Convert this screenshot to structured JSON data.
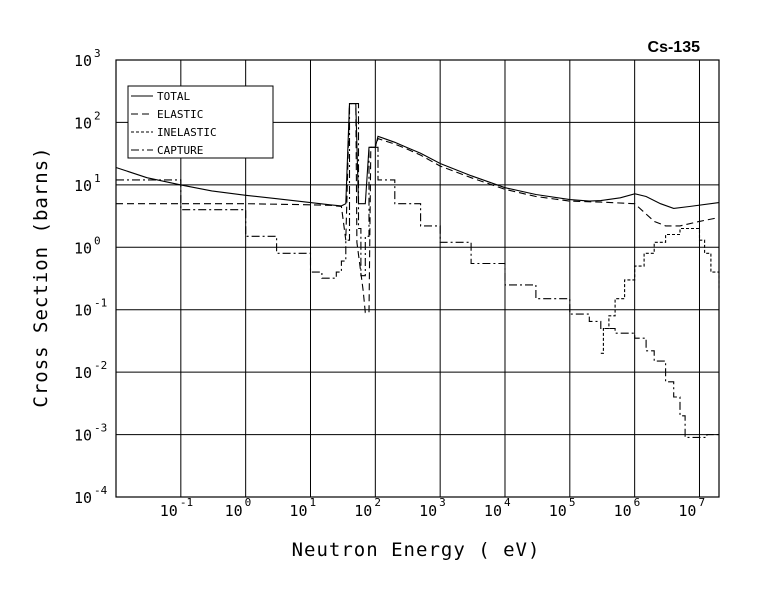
{
  "chart_data": {
    "type": "line",
    "title": "Cs-135",
    "xlabel": "Neutron Energy ( eV)",
    "ylabel": "Cross Section (barns)",
    "x_scale": "log",
    "y_scale": "log",
    "xlim": [
      0.01,
      20000000
    ],
    "ylim": [
      0.0001,
      1000
    ],
    "grid": true,
    "legend_position": "top-left",
    "x_ticks": [
      {
        "base": "10",
        "exp": "-1",
        "value": 0.1
      },
      {
        "base": "10",
        "exp": "0",
        "value": 1
      },
      {
        "base": "10",
        "exp": "1",
        "value": 10
      },
      {
        "base": "10",
        "exp": "2",
        "value": 100
      },
      {
        "base": "10",
        "exp": "3",
        "value": 1000
      },
      {
        "base": "10",
        "exp": "4",
        "value": 10000
      },
      {
        "base": "10",
        "exp": "5",
        "value": 100000
      },
      {
        "base": "10",
        "exp": "6",
        "value": 1000000
      },
      {
        "base": "10",
        "exp": "7",
        "value": 10000000
      }
    ],
    "y_ticks": [
      {
        "base": "10",
        "exp": "3",
        "value": 1000
      },
      {
        "base": "10",
        "exp": "2",
        "value": 100
      },
      {
        "base": "10",
        "exp": "1",
        "value": 10
      },
      {
        "base": "10",
        "exp": "0",
        "value": 1
      },
      {
        "base": "10",
        "exp": "-1",
        "value": 0.1
      },
      {
        "base": "10",
        "exp": "-2",
        "value": 0.01
      },
      {
        "base": "10",
        "exp": "-3",
        "value": 0.001
      },
      {
        "base": "10",
        "exp": "-4",
        "value": 0.0001
      }
    ],
    "series": [
      {
        "name": "TOTAL",
        "dash": "solid",
        "color": "#000000",
        "step": false,
        "points": [
          [
            0.01,
            19
          ],
          [
            0.03,
            13
          ],
          [
            0.1,
            10
          ],
          [
            0.3,
            8
          ],
          [
            1,
            6.8
          ],
          [
            3,
            6
          ],
          [
            10,
            5.2
          ],
          [
            20,
            4.8
          ],
          [
            30,
            4.6
          ],
          [
            35,
            5
          ],
          [
            40,
            200
          ],
          [
            50,
            200
          ],
          [
            55,
            5
          ],
          [
            70,
            5
          ],
          [
            80,
            40
          ],
          [
            100,
            40
          ],
          [
            110,
            60
          ],
          [
            200,
            48
          ],
          [
            300,
            40
          ],
          [
            500,
            32
          ],
          [
            1000,
            22
          ],
          [
            3000,
            14
          ],
          [
            10000,
            9
          ],
          [
            30000,
            7
          ],
          [
            100000,
            5.8
          ],
          [
            200000,
            5.5
          ],
          [
            300000,
            5.6
          ],
          [
            600000,
            6.2
          ],
          [
            1000000,
            7.2
          ],
          [
            1500000,
            6.5
          ],
          [
            2500000,
            5
          ],
          [
            4000000,
            4.2
          ],
          [
            7000000,
            4.5
          ],
          [
            20000000,
            5.2
          ]
        ]
      },
      {
        "name": "ELASTIC",
        "dash": "long-dash",
        "color": "#000000",
        "step": false,
        "points": [
          [
            0.01,
            5
          ],
          [
            0.1,
            5
          ],
          [
            1,
            5
          ],
          [
            10,
            4.8
          ],
          [
            20,
            4.7
          ],
          [
            30,
            4.5
          ],
          [
            35,
            1.3
          ],
          [
            40,
            200
          ],
          [
            50,
            200
          ],
          [
            52,
            1.2
          ],
          [
            65,
            0.2
          ],
          [
            70,
            0.09
          ],
          [
            80,
            0.09
          ],
          [
            85,
            40
          ],
          [
            100,
            40
          ],
          [
            110,
            55
          ],
          [
            200,
            45
          ],
          [
            300,
            38
          ],
          [
            500,
            30
          ],
          [
            1000,
            20
          ],
          [
            3000,
            13
          ],
          [
            10000,
            8.5
          ],
          [
            30000,
            6.5
          ],
          [
            100000,
            5.5
          ],
          [
            300000,
            5.3
          ],
          [
            1000000,
            5
          ],
          [
            2000000,
            2.6
          ],
          [
            3000000,
            2.2
          ],
          [
            5000000,
            2.2
          ],
          [
            10000000,
            2.6
          ],
          [
            20000000,
            3
          ]
        ]
      },
      {
        "name": "INELASTIC",
        "dash": "short-dash",
        "color": "#000000",
        "step": true,
        "points": [
          [
            300000,
            0.02
          ],
          [
            330000,
            0.05
          ],
          [
            400000,
            0.08
          ],
          [
            500000,
            0.15
          ],
          [
            700000,
            0.3
          ],
          [
            1000000,
            0.5
          ],
          [
            1400000,
            0.8
          ],
          [
            2000000,
            1.2
          ],
          [
            3000000,
            1.6
          ],
          [
            5000000,
            2
          ],
          [
            8000000,
            2
          ],
          [
            10000000,
            1.3
          ],
          [
            12000000,
            0.8
          ],
          [
            15000000,
            0.4
          ],
          [
            20000000,
            0.22
          ]
        ]
      },
      {
        "name": "CAPTURE",
        "dash": "dash-dot",
        "color": "#000000",
        "step": true,
        "points": [
          [
            0.01,
            12
          ],
          [
            0.1,
            4
          ],
          [
            1,
            1.5
          ],
          [
            3,
            0.8
          ],
          [
            10,
            0.4
          ],
          [
            15,
            0.32
          ],
          [
            25,
            0.4
          ],
          [
            30,
            0.6
          ],
          [
            35,
            1.3
          ],
          [
            40,
            200
          ],
          [
            50,
            200
          ],
          [
            55,
            2
          ],
          [
            60,
            0.35
          ],
          [
            70,
            1.5
          ],
          [
            80,
            40
          ],
          [
            100,
            40
          ],
          [
            110,
            12
          ],
          [
            200,
            5
          ],
          [
            500,
            2.2
          ],
          [
            1000,
            1.2
          ],
          [
            3000,
            0.55
          ],
          [
            10000,
            0.25
          ],
          [
            30000,
            0.15
          ],
          [
            100000,
            0.085
          ],
          [
            200000,
            0.065
          ],
          [
            300000,
            0.05
          ],
          [
            500000,
            0.042
          ],
          [
            1000000,
            0.035
          ],
          [
            1500000,
            0.022
          ],
          [
            2000000,
            0.015
          ],
          [
            3000000,
            0.007
          ],
          [
            4000000,
            0.004
          ],
          [
            5000000,
            0.002
          ],
          [
            6000000,
            0.0009
          ],
          [
            10000000,
            0.0009
          ],
          [
            13000000,
            0.001
          ],
          [
            20000000,
            0.0011
          ]
        ]
      }
    ]
  }
}
